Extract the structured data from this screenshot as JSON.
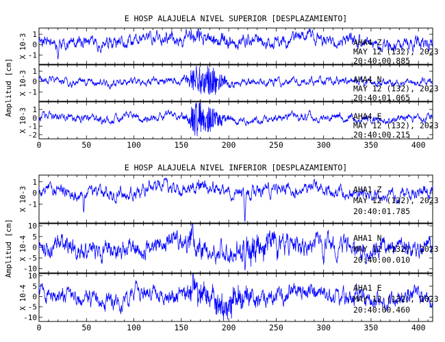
{
  "chart_data": [
    {
      "type": "line",
      "title": "E HOSP ALAJUELA NIVEL SUPERIOR [DESPLAZAMIENTO]",
      "ylabel": "Amplitud [cm]",
      "xlabel": "",
      "xlim": [
        0,
        415
      ],
      "xticks": [
        0,
        50,
        100,
        150,
        200,
        250,
        300,
        350,
        400
      ],
      "grid": false,
      "series_color": "#0000ff",
      "panels": [
        {
          "channel": "AHA4 Z",
          "date_line": "MAY 12 (132), 2023",
          "time_line": "20:40:00.885",
          "scale_label": "X 10-3",
          "ylim": [
            -1.9,
            1.6
          ],
          "yticks": [
            -1,
            0,
            1
          ],
          "wave": {
            "seed": 11,
            "noise": 0.38,
            "swell": 0.45,
            "trend": 0.5,
            "burst_amp": 0.35,
            "bursts": [
              [
                165,
                10
              ],
              [
                195,
                12
              ]
            ],
            "spikes": [
              [
                20,
                -1.3
              ]
            ]
          }
        },
        {
          "channel": "AHA4 N",
          "date_line": "MAY 12 (132), 2023",
          "time_line": "20:40:01.065",
          "scale_label": "X 10-3",
          "ylim": [
            -1.9,
            1.6
          ],
          "yticks": [
            -1,
            0,
            1
          ],
          "wave": {
            "seed": 23,
            "noise": 0.22,
            "swell": 0.18,
            "trend": 0.0,
            "burst_amp": 1.25,
            "bursts": [
              [
                163,
                6
              ],
              [
                180,
                15
              ]
            ],
            "spikes": []
          }
        },
        {
          "channel": "AHA4 E",
          "date_line": "MAY 12 (132), 2023",
          "time_line": "20:40:00.215",
          "scale_label": "X 10-3",
          "ylim": [
            -2.5,
            1.9
          ],
          "yticks": [
            -2,
            -1,
            0,
            1
          ],
          "wave": {
            "seed": 37,
            "noise": 0.3,
            "swell": 0.28,
            "trend": 0.0,
            "burst_amp": 1.45,
            "bursts": [
              [
                164,
                6
              ],
              [
                178,
                14
              ]
            ],
            "spikes": [
              [
                163,
                -2.2
              ]
            ]
          }
        }
      ]
    },
    {
      "type": "line",
      "title": "E HOSP ALAJUELA NIVEL INFERIOR [DESPLAZAMIENTO]",
      "ylabel": "Amplitud [cm]",
      "xlabel": "",
      "xlim": [
        0,
        415
      ],
      "xticks": [
        0,
        50,
        100,
        150,
        200,
        250,
        300,
        350,
        400
      ],
      "grid": false,
      "series_color": "#0000ff",
      "panels": [
        {
          "channel": "AHA1 Z",
          "date_line": "MAY 12 (132), 2023",
          "time_line": "20:40:01.785",
          "scale_label": "X 10-3",
          "ylim": [
            -2.7,
            1.6
          ],
          "yticks": [
            -1,
            0,
            1
          ],
          "wave": {
            "seed": 53,
            "noise": 0.35,
            "swell": 0.42,
            "trend": 0.3,
            "burst_amp": 0.2,
            "bursts": [
              [
                168,
                12
              ]
            ],
            "spikes": [
              [
                47,
                -1.4
              ],
              [
                217,
                -2.4
              ]
            ]
          }
        },
        {
          "channel": "AHA1 N",
          "date_line": "MAY 12 (132), 2023",
          "time_line": "20:40:00.010",
          "scale_label": "X 10-4",
          "ylim": [
            -12,
            11
          ],
          "yticks": [
            -10,
            -5,
            0,
            5,
            10
          ],
          "wave": {
            "seed": 71,
            "noise": 2.8,
            "swell": 2.2,
            "trend": 0.0,
            "burst_amp": 3.5,
            "bursts": [
              [
                163,
                8
              ],
              [
                230,
                30
              ]
            ],
            "spikes": [
              [
                162,
                10
              ],
              [
                300,
                -7
              ]
            ]
          }
        },
        {
          "channel": "AHA1 E",
          "date_line": "MAY 12 (132), 2023",
          "time_line": "20:40:00.460",
          "scale_label": "X 10-4",
          "ylim": [
            -12,
            11
          ],
          "yticks": [
            -10,
            -5,
            0,
            5,
            10
          ],
          "wave": {
            "seed": 89,
            "noise": 2.6,
            "swell": 2.8,
            "trend": 0.0,
            "burst_amp": 4.0,
            "bursts": [
              [
                165,
                10
              ],
              [
                200,
                25
              ]
            ],
            "spikes": [
              [
                162,
                9
              ],
              [
                400,
                8
              ]
            ]
          }
        }
      ]
    }
  ]
}
